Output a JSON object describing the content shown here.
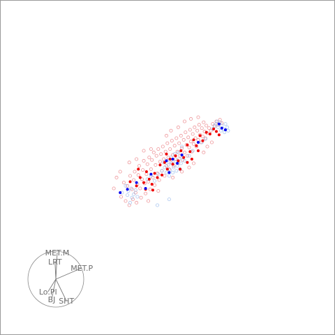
{
  "chart_data": {
    "type": "scatter",
    "title": "",
    "xlabel": "",
    "ylabel": "",
    "grid": false,
    "legend": "none",
    "projection_axes": [
      {
        "label": "MET.M",
        "dx": 0.05,
        "dy": -0.95
      },
      {
        "label": "LRT",
        "dx": -0.03,
        "dy": -0.62
      },
      {
        "label": "MET.P",
        "dx": 0.93,
        "dy": -0.4
      },
      {
        "label": "Lo.PI",
        "dx": -0.28,
        "dy": 0.45
      },
      {
        "label": "BJ",
        "dx": -0.15,
        "dy": 0.72
      },
      {
        "label": "SHT",
        "dx": 0.38,
        "dy": 0.78
      }
    ],
    "series": [
      {
        "color_faint": "#e8747a",
        "color_solid": "#ee0000",
        "points_faint": [
          [
            -0.42,
            -0.18
          ],
          [
            -0.38,
            -0.22
          ],
          [
            -0.35,
            -0.1
          ],
          [
            -0.33,
            -0.26
          ],
          [
            -0.31,
            -0.15
          ],
          [
            -0.3,
            -0.05
          ],
          [
            -0.29,
            -0.3
          ],
          [
            -0.27,
            -0.2
          ],
          [
            -0.26,
            -0.09
          ],
          [
            -0.25,
            0.02
          ],
          [
            -0.24,
            -0.25
          ],
          [
            -0.22,
            -0.14
          ],
          [
            -0.21,
            -0.03
          ],
          [
            -0.2,
            0.08
          ],
          [
            -0.19,
            -0.19
          ],
          [
            -0.18,
            -0.31
          ],
          [
            -0.17,
            -0.08
          ],
          [
            -0.16,
            0.04
          ],
          [
            -0.15,
            -0.17
          ],
          [
            -0.14,
            0.12
          ],
          [
            -0.13,
            -0.26
          ],
          [
            -0.12,
            -0.02
          ],
          [
            -0.11,
            0.09
          ],
          [
            -0.1,
            -0.12
          ],
          [
            -0.09,
            0.18
          ],
          [
            -0.08,
            -0.21
          ],
          [
            -0.07,
            0.03
          ],
          [
            -0.06,
            0.14
          ],
          [
            -0.05,
            -0.07
          ],
          [
            -0.04,
            0.22
          ],
          [
            -0.03,
            -0.15
          ],
          [
            -0.02,
            0.07
          ],
          [
            -0.01,
            0.16
          ],
          [
            0.0,
            -0.04
          ],
          [
            0.01,
            0.25
          ],
          [
            0.02,
            0.1
          ],
          [
            0.03,
            -0.1
          ],
          [
            0.04,
            0.19
          ],
          [
            0.05,
            0.02
          ],
          [
            0.06,
            0.29
          ],
          [
            0.07,
            0.12
          ],
          [
            0.08,
            -0.02
          ],
          [
            0.09,
            0.22
          ],
          [
            0.1,
            0.06
          ],
          [
            0.11,
            0.32
          ],
          [
            0.12,
            0.15
          ],
          [
            0.13,
            0.02
          ],
          [
            0.14,
            0.26
          ],
          [
            0.15,
            0.1
          ],
          [
            0.16,
            0.35
          ],
          [
            0.17,
            0.19
          ],
          [
            0.18,
            0.05
          ],
          [
            0.19,
            0.29
          ],
          [
            0.2,
            0.14
          ],
          [
            0.21,
            0.38
          ],
          [
            0.22,
            0.23
          ],
          [
            0.23,
            0.09
          ],
          [
            0.24,
            0.33
          ],
          [
            0.25,
            0.18
          ],
          [
            0.26,
            0.42
          ],
          [
            0.27,
            0.27
          ],
          [
            0.28,
            0.14
          ],
          [
            0.29,
            0.36
          ],
          [
            0.3,
            0.24
          ],
          [
            0.31,
            0.45
          ],
          [
            0.32,
            0.31
          ],
          [
            0.33,
            0.19
          ],
          [
            0.34,
            0.4
          ],
          [
            0.35,
            0.28
          ],
          [
            0.36,
            0.48
          ],
          [
            0.37,
            0.35
          ],
          [
            0.38,
            0.25
          ],
          [
            0.39,
            0.44
          ],
          [
            0.4,
            0.33
          ],
          [
            0.41,
            0.51
          ],
          [
            0.42,
            0.39
          ],
          [
            0.43,
            0.3
          ],
          [
            0.44,
            0.47
          ],
          [
            0.45,
            0.37
          ],
          [
            0.46,
            0.54
          ],
          [
            0.47,
            0.43
          ],
          [
            0.48,
            0.35
          ],
          [
            0.49,
            0.5
          ],
          [
            0.5,
            0.41
          ],
          [
            0.52,
            0.47
          ],
          [
            0.54,
            0.44
          ],
          [
            0.56,
            0.52
          ],
          [
            0.58,
            0.49
          ],
          [
            0.6,
            0.55
          ],
          [
            0.62,
            0.51
          ],
          [
            0.64,
            0.57
          ],
          [
            0.66,
            0.53
          ],
          [
            -0.45,
            -0.35
          ],
          [
            -0.4,
            -0.4
          ],
          [
            -0.36,
            -0.45
          ],
          [
            -0.32,
            -0.38
          ],
          [
            -0.28,
            -0.42
          ],
          [
            -0.23,
            -0.36
          ],
          [
            -0.46,
            -0.05
          ],
          [
            -0.5,
            -0.12
          ],
          [
            -0.36,
            0.06
          ],
          [
            -0.28,
            0.1
          ],
          [
            -0.12,
            0.22
          ],
          [
            0.05,
            0.38
          ],
          [
            0.18,
            0.48
          ],
          [
            0.32,
            0.58
          ],
          [
            0.12,
            -0.12
          ],
          [
            0.22,
            -0.05
          ],
          [
            0.35,
            0.05
          ],
          [
            0.46,
            0.18
          ],
          [
            0.55,
            0.3
          ],
          [
            -0.04,
            -0.28
          ],
          [
            0.1,
            0.44
          ],
          [
            -0.2,
            0.2
          ],
          [
            0.25,
            0.55
          ],
          [
            0.4,
            0.6
          ],
          [
            -0.15,
            -0.4
          ],
          [
            0.3,
            0.0
          ],
          [
            0.5,
            0.25
          ],
          [
            -0.53,
            -0.25
          ]
        ],
        "points_solid": [
          [
            -0.35,
            -0.17
          ],
          [
            -0.28,
            -0.22
          ],
          [
            -0.24,
            -0.12
          ],
          [
            -0.2,
            -0.18
          ],
          [
            -0.17,
            -0.05
          ],
          [
            -0.14,
            -0.14
          ],
          [
            -0.11,
            -0.2
          ],
          [
            -0.08,
            -0.07
          ],
          [
            -0.05,
            -0.12
          ],
          [
            -0.02,
            0.03
          ],
          [
            0.0,
            -0.09
          ],
          [
            0.03,
            0.06
          ],
          [
            0.06,
            -0.02
          ],
          [
            0.09,
            0.1
          ],
          [
            0.12,
            0.04
          ],
          [
            0.15,
            0.14
          ],
          [
            0.18,
            0.08
          ],
          [
            0.21,
            0.2
          ],
          [
            0.24,
            0.12
          ],
          [
            0.28,
            0.27
          ],
          [
            0.31,
            0.19
          ],
          [
            0.35,
            0.33
          ],
          [
            0.38,
            0.26
          ],
          [
            0.42,
            0.38
          ],
          [
            0.45,
            0.32
          ],
          [
            0.49,
            0.42
          ],
          [
            0.53,
            0.4
          ],
          [
            0.57,
            0.46
          ],
          [
            0.6,
            0.43
          ],
          [
            0.63,
            0.39
          ],
          [
            0.2,
            -0.02
          ],
          [
            0.28,
            0.06
          ],
          [
            -0.18,
            -0.26
          ],
          [
            -0.1,
            -0.27
          ],
          [
            0.33,
            0.1
          ],
          [
            0.4,
            0.2
          ],
          [
            -0.26,
            -0.02
          ],
          [
            0.05,
            0.16
          ]
        ]
      },
      {
        "color_faint": "#8fb4ea",
        "color_solid": "#0000ee",
        "points_faint": [
          [
            -0.4,
            -0.22
          ],
          [
            -0.37,
            -0.28
          ],
          [
            -0.34,
            -0.25
          ],
          [
            -0.31,
            -0.32
          ],
          [
            -0.29,
            -0.27
          ],
          [
            -0.27,
            -0.35
          ],
          [
            -0.33,
            -0.36
          ],
          [
            -0.38,
            -0.33
          ],
          [
            0.0,
            -0.04
          ],
          [
            0.03,
            0.0
          ],
          [
            0.05,
            -0.06
          ],
          [
            0.07,
            0.03
          ],
          [
            0.09,
            -0.03
          ],
          [
            0.11,
            0.05
          ],
          [
            0.13,
            0.0
          ],
          [
            0.15,
            0.07
          ],
          [
            0.17,
            0.02
          ],
          [
            0.19,
            0.1
          ],
          [
            0.21,
            0.05
          ],
          [
            0.23,
            0.12
          ],
          [
            0.25,
            0.08
          ],
          [
            0.06,
            0.08
          ],
          [
            0.1,
            0.12
          ],
          [
            0.14,
            0.16
          ],
          [
            0.18,
            0.18
          ],
          [
            0.12,
            -0.06
          ],
          [
            0.16,
            -0.04
          ],
          [
            0.2,
            -0.02
          ],
          [
            0.08,
            -0.1
          ],
          [
            0.02,
            0.06
          ],
          [
            0.58,
            0.5
          ],
          [
            0.6,
            0.52
          ],
          [
            0.62,
            0.48
          ],
          [
            0.64,
            0.54
          ],
          [
            0.66,
            0.5
          ],
          [
            0.68,
            0.46
          ],
          [
            0.7,
            0.52
          ],
          [
            0.72,
            0.48
          ],
          [
            0.65,
            0.44
          ],
          [
            0.61,
            0.55
          ],
          [
            0.69,
            0.42
          ],
          [
            0.73,
            0.44
          ],
          [
            0.56,
            0.46
          ],
          [
            0.44,
            0.3
          ],
          [
            0.48,
            0.34
          ],
          [
            -0.16,
            -0.14
          ],
          [
            -0.12,
            -0.1
          ],
          [
            -0.08,
            -0.16
          ],
          [
            -0.04,
            -0.08
          ],
          [
            0.3,
            0.14
          ],
          [
            0.34,
            0.2
          ],
          [
            -0.35,
            -0.42
          ],
          [
            -0.05,
            -0.45
          ],
          [
            0.08,
            -0.38
          ],
          [
            0.22,
            0.25
          ],
          [
            -0.44,
            -0.3
          ]
        ],
        "points_solid": [
          [
            -0.46,
            -0.3
          ],
          [
            -0.38,
            -0.26
          ],
          [
            -0.28,
            -0.18
          ],
          [
            -0.18,
            -0.25
          ],
          [
            0.05,
            0.08
          ],
          [
            0.08,
            -0.06
          ],
          [
            0.12,
            0.1
          ],
          [
            0.17,
            0.05
          ],
          [
            0.63,
            0.52
          ],
          [
            0.66,
            0.47
          ],
          [
            0.7,
            0.45
          ],
          [
            0.4,
            0.3
          ],
          [
            -0.12,
            -0.08
          ],
          [
            0.22,
            0.15
          ]
        ]
      }
    ]
  }
}
